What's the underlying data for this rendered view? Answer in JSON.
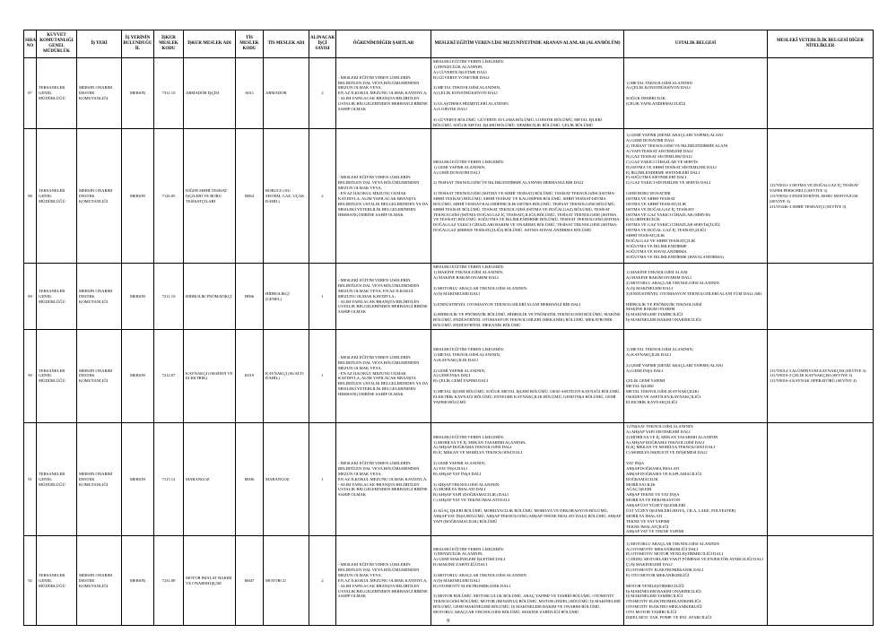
{
  "table": {
    "headers": [
      "SIRA NO",
      "KUVVET KOMUTANLIĞI GENEL MÜDÜRLÜK",
      "İŞ YERİ",
      "İŞ YERİNİN BULUNDUĞU İL",
      "İŞKUR MESLEK KODU",
      "İŞKUR MESLEK ADI",
      "TİS MESLEK KODU",
      "TİS MESLEK ADI",
      "ALINACAK İŞÇİ SAYISI",
      "ÖĞRENİM/DİĞER ŞARTLAR",
      "MESLEKİ EĞİTİM VEREN LİSE MEZUNİYETİNDE ARANAN ALANLAR (ALAN/BÖLÜM)",
      "USTALIK BELGESİ",
      "MESLEKİ YETERLİLİK BELGESİ DİĞER NİTELİKLER"
    ],
    "rows": [
      {
        "sira": "87",
        "kuvvet": "TERSANELER GENEL MÜDÜRLÜĞÜ",
        "is_yeri": "MERSİN ONARIM DESTEK KOMUTANLIĞI",
        "il": "MERSİN",
        "iskur_kodu": "7311.10",
        "iskur_adi": "ARMADÖR İŞÇİSİ",
        "tis_kodu": "A011",
        "tis_adi": "ARMADOR",
        "sayi": "2",
        "ogrenim": "- MESLEKİ EĞİTİM VEREN LİSELERİN BELİRTİLEN DAL VEYA BÖLÜMLERİNDEN MEZUN OLMAK VEYA,\nEN AZ İLKOKUL MEZUNU OLMAK KAYDIYLA;\n- ALIM YAPILACAK BRANŞTA BELİRTİLEN USTALIK BELGELERİNDEN HERHANGİ BİRİNE SAHİP OLMAK",
        "alanlar": "MESLEKİ EĞİTİM VEREN LİSELERİN:\n1) DENİZCİLİK ALANININ;\nA) GÜVERTE İŞLETME DALI\nB) GÜVERTE YÖNETİMİ DALI\n\n2) METAL TEKNOLOJİSİ ALANININ;\nA) ÇELİK KONSTRÜKSİYON DALI\n\n3) ULAŞTIRMA HİZMETLERİ ALANININ;\nA) LOJİSTİK DALI\n\n4) GÜVERTE BÖLÜMÜ, GÜVERTE AVLAMA BÖLÜMÜ, LOJİSTİK BÖLÜMÜ, METAL İŞLERİ BÖLÜMÜ, SOĞUK METAL İŞLERİ BÖLÜMÜ, DEMİRCİLİK BÖLÜMÜ, ÇELİK BÖLÜMÜ",
        "ustalik": "1) METAL TEKNOLOJİSİ ALANININ\nA) ÇELİK KONSTRÜKSİYON DALI\n\nSOĞUK DEMİRCİLİK\n(ÇELİK YAPILANDIRMACILIĞI)",
        "yeterlilik": ""
      },
      {
        "sira": "88",
        "kuvvet": "TERSANELER GENEL MÜDÜRLÜĞÜ",
        "is_yeri": "MERSİN ONARIM DESTEK KOMUTANLIĞI",
        "il": "MERSİN",
        "iskur_kodu": "7126.05",
        "iskur_adi": "DİĞER SIHHİ TESİSAT İŞÇİLERİ VE BORU TESİSATÇILARI",
        "tis_kodu": "B064",
        "tis_adi": "BORUCU (SU SİSTEM, GAZ, UÇAK DAHİL)",
        "sayi": "2",
        "ogrenim": "- MESLEKİ EĞİTİM VEREN LİSELERİN BELİRTİLEN DAL VEYA BÖLÜMLERİNDEN MEZUN OLMAK VEYA,\n- EN AZ İLKOKUL MEZUNU OLMAK KAYDIYLA; ALIM YAPILACAK BRANŞTA BELİRTİLEN USTALIK BELGELERİNDEN YA DA MESLEKİ YETERLİLİK BELGELERİNDEN HERHANGİ BİRİNE SAHİP OLMAK",
        "alanlar": "MESLEKİ EĞİTİM VEREN LİSELERİN:\n1) GEMİ YAPIMI ALANININ;\nA) GEMİ DONATIM DALI\n\n2) TESİSAT TEKNOLOJİSİ VE İKLİMLENDİRME ALANININ HERHANGİ BİR DALI\n\n3) TESİSAT TEKNOLOJİSİ (ISITMA VE SIHHİ TESİSAT) BÖLÜMÜ, TESİSAT TEKNOLOJİSİ (ISITMA-SIHHİ TESİSAT) BÖLÜMÜ, SIHHİ TESİSAT VE KALORİFER BÖLÜMÜ, SIHHİ TESİSAT-ISITMA BÖLÜMÜ, SIHHİ TESİSAT-KALORİFERCİLİK-ISITMA BÖLÜMÜ, TESİSAT TEKNOLOJİSİ BÖLÜMÜ, SIHHİ TESİSAT BÖLÜMÜ, TESİSAT TEKNOLOJİSİ (ISITMA VE DOĞALGAZ) BÖLÜMÜ, TESİSAT TEKNOLOJİSİ (ISITMA-DOĞALGAZ İÇ TESİSATÇILIĞI) BÖLÜMÜ, TESİSAT TEKNOLOJİSİ (ISITMA VE TESİSAT) BÖLÜMÜ, SOĞUTMA VE İKLİMLENDİRME BÖLÜMÜ, TESİSAT TEKNOLOJİSİ (ISITMA-DOĞALGAZ YAKICI CİHAZLARI BAKIM VE ONARIMI) BÖLÜMÜ, TESİSAT TEKNOLOJİSİ (ISITMA-DOĞALGAZ ŞEBEKE TESİSATÇILIĞI) BÖLÜMÜ, ISITMA-HAVALANDIRMA BÖLÜMÜ",
        "ustalik": "1) GEMİ YAPIMI (DENİZ ARAÇLARI YAPIMI) ALANI\nA) GEMİ DONATIMI DALI\n2) TESİSAT TEKNOLOJİSİ VE İKLİMLENDİRME ALANI\nA) YAPI TESİSAT SİSTEMLERİ DALI\nB) GAZ TESİSAT SİSTEMLERİ DALI\nC) GAZ YAKICI CİHAZLAR VE SERVİS\nD) ISITMA VE SIHHİ TESİSAT SİSTEMLERİ DALI\nE) İKLİMLENDİRME SİSTEMLERİ DALI\nF) SOĞUTMA SİSTEMLERİ DALI\nG) GAZ YAKICI SİSTEMLER VE SERVİS DALI\n\nGEMİ BORU DONATIMI\nISITMA VE SIHHİ TESİSAT\nISITMA VE SIHHİ TESİSATÇILIK\nISITMA VE DOĞALGAZ İÇ TESİSATI\nISITMA VE GAZ YAKICI CİHAZLAR (SERVİS)\nKALORİFERCİLİK\nISITMA VE GAZ YAKICI CİHAZLAR SERVİSÇİLİĞİ\nISITMA VE DOĞAL GAZ İÇ TESİSATÇILIĞI\nSIHHİ TESİSATÇILIK\nDOĞALGAZ VE SIHHİ TESİSATÇILIK\nSOĞUTMA VE İKLİMLENDİRME\nSOĞUTMA VE HAVALANDIRMA\nSOĞUTMA VE İKLİMLENDİRME (HAVALANDIRMA)",
        "yeterlilik": "11UY0031-3 ISITMA VE DOĞALGAZ İÇ TESİSAT YAPIM PERSONELİ (SEVİYE 3)\n11UY0032-3 ENDÜSTRİYEL BORU MONTAJCISI (SEVİYE 3)\n21UY0446-3 SIHHİ TESİSATÇI (SEVİYE 3)"
      },
      {
        "sira": "89",
        "kuvvet": "TERSANELER GENEL MÜDÜRLÜĞÜ",
        "is_yeri": "MERSİN ONARIM DESTEK KOMUTANLIĞI",
        "il": "MERSİN",
        "iskur_kodu": "7211.19",
        "iskur_adi": "HİDROLİK PNÖMATİKÇİ",
        "tis_kodu": "H006",
        "tis_adi": "HİDROLİKÇİ (GENEL)",
        "sayi": "1",
        "ogrenim": "- MESLEKİ EĞİTİM VEREN LİSELERİN BELİRTİLEN DAL VEYA BÖLÜMLERİNDEN MEZUN OLMAK VEYA, EN AZ İLKOKUL MEZUNU OLMAK KAYDIYLA;\n- ALIM YAPILACAK BRANŞTA BELİRTİLEN USTALIK BELGELERİNDEN HERHANGİ BİRİNE SAHİP OLMAK",
        "alanlar": "MESLEKİ EĞİTİM VEREN LİSELERİN:\n1) MAKİNE TEKNOLOJİSİ ALANININ;\nA) MAKİNE BAKIM ONARIM DALI\n\n2) MOTORLU ARAÇLAR TEKNOLOJİSİ ALANININ:\nA) İŞ MAKİNELERİ DALI\n\n3) ENDÜSTRİYEL OTOMASYON TEKNOLOJİLERİ ALANI HERHANGİ BİR DALI\n\n4) HİDROLİK VE PNÖMATİK BÖLÜMÜ, HİDROLİK VE PNÖMATİK TEKNOLOJİSİ BÖLÜMÜ, MAKİNE BÖLÜMÜ, ENDÜSTRİYEL OTOMASYON TEKNOLOJİLERİ (MEKANİK) BÖLÜMÜ, MEKATRONİK BÖLÜMÜ, ENDÜSTRİYEL MEKANİK BÖLÜMÜ",
        "ustalik": "1) MAKİNE TEKNOLOJİSİ ALANI\nA) MAKİNE BAKIM ONARIM DALI\n2) MOTORLU ARAÇLAR TEKNOLOJİSİ ALANININ\nA) İŞ MAKİNELERİ DALI\n3) ENDÜSTRİYEL OTOMASYON TEKNOLOJİLERİ ALANI TÜM DALLARI\n\nHİDROLİK VE PNÖMATİK TEKNOLOJİSİ\nMAKİNE BAKIM ONARIM\nİŞ MAKİNELERİ TAMİRCİLİĞİ\nİŞ MAKİNELERİ BAKIM ONARIMCILIĞI",
        "yeterlilik": ""
      },
      {
        "sira": "90",
        "kuvvet": "TERSANELER GENEL MÜDÜRLÜĞÜ",
        "is_yeri": "MERSİN ONARIM DESTEK KOMUTANLIĞI",
        "il": "MERSİN",
        "iskur_kodu": "7212.07",
        "iskur_adi": "KAYNAKÇI (OKSİJEN VE ELEKTRİK)",
        "tis_kodu": "K019",
        "tis_adi": "KAYNAKÇI (SUALTI DAHİL)",
        "sayi": "1",
        "ogrenim": "- MESLEKİ EĞİTİM VEREN LİSELERİN BELİRTİLEN DAL VEYA BÖLÜMLERİNDEN MEZUN OLMAK VEYA,\n- EN AZ İLKOKUL MEZUNU OLMAK KAYDIYLA; ALIM YAPILACAK BRANŞTA BELİRTİLEN USTALIK BELGELERİNDEN YA DA MESLEKİ YETERLİLİK BELGELERİNDEN HERHANGİ BİRİNE SAHİP OLMAK",
        "alanlar": "MESLEKİ EĞİTİM VEREN LİSELERİN:\n1) METAL TEKNOLOJİSİ ALANININ;\nA) KAYNAKÇILIK DALI\n\n2) GEMİ YAPIMI ALANININ;\nA) GEMİ İNŞA DALI\nB) ÇELİK GEMİ YAPIMI DALI\n\n3) METAL İŞLERİ BÖLÜMÜ, SOĞUK METAL İŞLERİ BÖLÜMÜ, OKSİ-ASETİLEN KAYNAĞI BÖLÜMÜ, ELEKTRİK KAYNAĞI BÖLÜMÜ, ENTEGRE KAYNAKÇILIK BÖLÜMÜ, GEMİ İNŞA BÖLÜMÜ, GEMİ YAPIMI BÖLÜMÜ",
        "ustalik": "1) METAL TEKNOLOJİSİ ALANININ;\nA) KAYNAKÇILIK DALI\n\n2) GEMİ YAPIMI (DENİZ ARAÇLARI YAPIMI) ALANI\nA) GEMİ İNŞA DALI\n\nÇELİK GEMİ YAPIMI\nMETAL İŞLERİ\nMETAL TEKNOLOJİSİ (KAYNAKÇILIK)\nOKSİJEN VE ASETİLEN KAYNAKÇILIĞI\nELEKTRİK KAYNAKÇILIĞI",
        "yeterlilik": "11UY0014-3 ALÜMİNYUM KAYNAKÇISI (SEVİYE 3)\n11UY0010-3 ÇELİK KAYNAKÇISI (SEVİYE 3)\n11UY0016-4 KAYNAK OPERATÖRÜ (SEVİYE 4)"
      },
      {
        "sira": "91",
        "kuvvet": "TERSANELER GENEL MÜDÜRLÜĞÜ",
        "is_yeri": "MERSİN ONARIM DESTEK KOMUTANLIĞI",
        "il": "MERSİN",
        "iskur_kodu": "7115.12",
        "iskur_adi": "MARANGOZ",
        "tis_kodu": "M036",
        "tis_adi": "MARANGOZ",
        "sayi": "1",
        "ogrenim": "- MESLEKİ EĞİTİM VEREN LİSELERİN BELİRTİLEN DAL VEYA BÖLÜMLERİNDEN MEZUN OLMAK VEYA,\nEN AZ İLKOKUL MEZUNU OLMAK KAYDIYLA;\n- ALIM YAPILACAK BRANŞTA BELİRTİLEN USTALIK BELGELERİNDEN HERHANGİ BİRİNE SAHİP OLMAK",
        "alanlar": "MESLEKİ EĞİTİM VEREN LİSELERİN:\n1) MOBİLYA VE İÇ MEKAN TASARIMI ALANININ;\nA) AHŞAP DOĞRAMA TEKNOLOJİSİ DALI\nB) İÇ MEKAN VE MOBİLYA TEKNOLOJİSİ DALI\n\n2) GEMİ YAPIMI ALANININ;\nA) YAT İNŞA DALI\nB) AHŞAP YAT İNŞA DALI\n\n3) AHŞAP TEKNOLOJİSİ ALANININ;\nA) MOBİLYA İMALATI DALI\nB) AHŞAP YAPI (DOĞRAMACILIK) DALI\nC) AHŞAP YAT VE TEKNE İMALATI DALI\n\n4) AĞAÇ İŞLERİ BÖLÜMÜ, MOBİLYACILIK BÖLÜMÜ, MOBİLYA VE DEKORASYON BÖLÜMÜ, AHŞAP YAT İNŞA BÖLÜMÜ, AHŞAP TEKNOLOJİSİ (AHŞAP TEKNE İMALATI DALI) BÖLÜMÜ, AHŞAP YAPI (DOĞRAMACILIK) BÖLÜMÜ",
        "ustalik": "1) İNŞAAT TEKNOLOJİSİ ALANININ\nA) AHŞAP YAPI SİSTEMLERİ DALI\n2) MOBİLYA VE İÇ MEKAN TASARIMI ALANININ\nA) AHŞAP DOĞRAMA TEKNOLOJİSİ DALI\nB) İÇ MEKAN VE MOBİLYA TEKNOLOJİSİ DALI\nC) MOBİLYA İSKELETİ VE DÖŞEMESİ DALI\n\nYAT İNŞA\nAHŞAP DOĞRAMA İMALATI\nAHŞAP DOĞRAMA VE KAPLAMACILIĞI\nDOĞRAMACILIK\nMOBİLYACILIK\nAĞAÇ İŞLERİ\nAHŞAP TEKNE VE YAT İNŞA\nMOBİLYA VE DEKORASYON\nAHŞAP ÜST YÜZEY İŞLEMLERİ\nÜST YÜZEY İŞLEMLERİ (BOYA, CİLA, LAKE, POLYESTER)\nMOBİLYA İMALATI\nTEKNE VE YAT YAPIMI\nTEKNE İMALATÇILIĞI\nAHŞAP YAT VE TEKNE YAPIMI",
        "yeterlilik": ""
      },
      {
        "sira": "92",
        "kuvvet": "TERSANELER GENEL MÜDÜRLÜĞÜ",
        "is_yeri": "MERSİN ONARIM DESTEK KOMUTANLIĞI",
        "il": "MERSİN",
        "iskur_kodu": "7231.08",
        "iskur_adi": "MOTOR İMALAT BAKIM VE ONARIM İŞÇİSİ",
        "tis_kodu": "M047",
        "tis_adi": "MOTORCU",
        "sayi": "2",
        "ogrenim": "- MESLEKİ EĞİTİM VEREN LİSELERİN BELİRTİLEN DAL VEYA BÖLÜMLERİNDEN MEZUN OLMAK VEYA,\nEN AZ İLKOKUL MEZUNU OLMAK KAYDIYLA;\n- ALIM YAPILACAK BRANŞTA BELİRTİLEN USTALIK BELGELERİNDEN HERHANGİ BİRİNE SAHİP OLMAK",
        "alanlar": "MESLEKİ EĞİTİM VEREN LİSELERİN:\n1) DENİZCİLİK ALANININ;\nA) GEMİ MAKİNELERİ İŞLETİMİ DALI\nB) MAKİNE ZABİTLİĞİ DALI\n\n2) MOTORLU ARAÇLAR TEKNOLOJİSİ ALANININ\nA) İŞ MAKİNELERİ DALI\nB) OTOMOTİV ELEKTROMEKANİK DALI\n\n3) MOTOR BÖLÜMÜ, MOTORCULUK BÖLÜMÜ, ARAÇ YAPIMI VE TAMİRİ BÖLÜMÜ, OTOMOTİV TEKNOLOJİSİ BÖLÜMÜ, MOTOR (BENZİNLİ) BÖLÜMÜ, MOTOR (DİZEL) BÖLÜMÜ, İŞ MAKİNELERİ BÖLÜMÜ, GEMİ MAKİNELERİ BÖLÜMÜ, İŞ MAKİNELERİ BAKIM VE ONARIM BÖLÜMÜ, MOTORLU ARAÇLAR TEKNOLOJİSİ BÖLÜMÜ, MAKİNE ZABİTLİĞİ BÖLÜMÜ",
        "ustalik": "1) MOTORLU ARAÇLAR TEKNOLOJİSİ ALANININ\nA) OTOMOTİV MEKANİKERLİĞİ DALI\nB) OTOMOTİV MOTOR YENİLEŞTİRMECİLİĞİ DALI\nC) DİZEL MOTORLARI YAKIT POMPASI VE ENJEKTÖR AYARCILIĞI DALI\nÇ) İŞ MAKİNELERİ DALI\nD) OTOMOTİV ELEKTROMEKANİK DALI\nE) OTO MOTOR MEKANİKERLİĞİ\n\nMOTOR YENİLEŞTİRMECİLİĞİ\nİŞ MAKİNELERİ BAKIM ONARIMCILIĞI\nİŞ MAKİNELERİ TAMİRCİLİĞİ\nOTOMOTİV ELEKTROMEKANİKERLİĞİ\nOTOMOTİV ELEKTRO-MEKANİKERLİĞİ\nOTO MOTOR TAMİRCİLİĞİ\nDİZEL MOT. YAK. POMP. VE ENJ. AYARCILIĞI",
        "yeterlilik": ""
      }
    ]
  },
  "footer": {
    "page": "9"
  }
}
